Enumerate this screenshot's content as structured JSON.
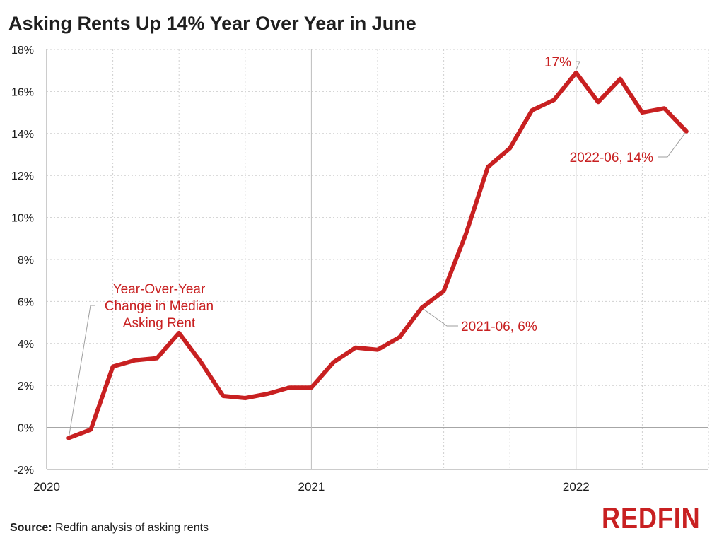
{
  "title": "Asking Rents Up 14% Year Over Year in June",
  "source": {
    "label": "Source:",
    "text": "Redfin analysis of asking rents"
  },
  "logo": "REDFIN",
  "colors": {
    "series": "#c82021",
    "grid": "#cfcfcf",
    "axis": "#999999",
    "leader": "#9e9e9e"
  },
  "chart_data": {
    "type": "line",
    "title": "Asking Rents Up 14% Year Over Year in June",
    "xlabel": "",
    "ylabel": "",
    "ylim": [
      -2,
      18
    ],
    "y_ticks": [
      -2,
      0,
      2,
      4,
      6,
      8,
      10,
      12,
      14,
      16,
      18
    ],
    "y_tick_labels": [
      "-2%",
      "0%",
      "2%",
      "4%",
      "6%",
      "8%",
      "10%",
      "12%",
      "14%",
      "16%",
      "18%"
    ],
    "x_tick_labels": [
      "2020",
      "2021",
      "2022"
    ],
    "grid": true,
    "legend": "none",
    "series": [
      {
        "x": [
          "2020-02",
          "2020-03",
          "2020-04",
          "2020-05",
          "2020-06",
          "2020-07",
          "2020-08",
          "2020-09",
          "2020-10",
          "2020-11",
          "2020-12",
          "2021-01",
          "2021-02",
          "2021-03",
          "2021-04",
          "2021-05",
          "2021-06",
          "2021-07",
          "2021-08",
          "2021-09",
          "2021-10",
          "2021-11",
          "2021-12",
          "2022-01",
          "2022-02",
          "2022-03",
          "2022-04",
          "2022-05",
          "2022-06"
        ],
        "values": [
          -0.5,
          -0.1,
          2.9,
          3.2,
          3.3,
          4.5,
          3.1,
          1.5,
          1.4,
          1.6,
          1.9,
          1.9,
          3.1,
          3.8,
          3.7,
          4.3,
          5.7,
          6.5,
          9.2,
          12.4,
          13.3,
          15.1,
          15.6,
          16.9,
          15.5,
          16.6,
          15.0,
          15.2,
          14.1
        ]
      }
    ],
    "annotations": [
      {
        "lines": [
          "Year-Over-Year",
          "Change in Median",
          "Asking Rent"
        ],
        "point": "2020-02"
      },
      {
        "text": "2021-06, 6%",
        "point": "2021-06"
      },
      {
        "text": "17%",
        "point": "2022-01"
      },
      {
        "text": "2022-06, 14%",
        "point": "2022-06"
      }
    ]
  }
}
